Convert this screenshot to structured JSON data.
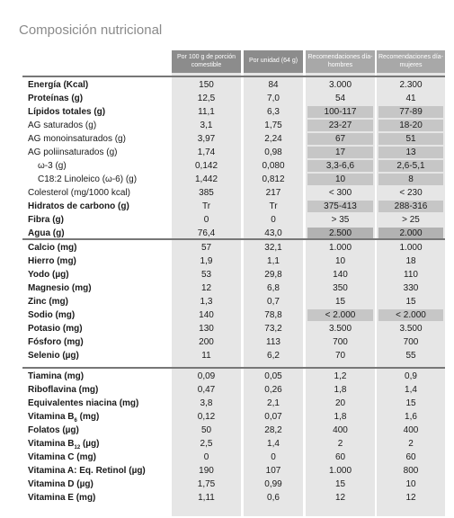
{
  "title": "Composición nutricional",
  "headers": {
    "per100": "Por 100 g de porción comestible",
    "perUnit": "Por unidad (64 g)",
    "recMen": "Recomendaciones día-hombres",
    "recWomen": "Recomendaciones día-mujeres"
  },
  "shade_color": "#c6c6c6",
  "groups": [
    [
      {
        "label": "Energía (Kcal)",
        "bold": true,
        "v": [
          "150",
          "84",
          "3.000",
          "2.300"
        ]
      },
      {
        "label": "Proteínas (g)",
        "bold": true,
        "v": [
          "12,5",
          "7,0",
          "54",
          "41"
        ]
      },
      {
        "label": "Lípidos totales (g)",
        "bold": true,
        "v": [
          "11,1",
          "6,3",
          "100-117",
          "77-89"
        ],
        "shade": [
          2,
          3
        ]
      },
      {
        "label": "AG saturados (g)",
        "v": [
          "3,1",
          "1,75",
          "23-27",
          "18-20"
        ],
        "shade": [
          2,
          3
        ]
      },
      {
        "label": "AG monoinsaturados (g)",
        "v": [
          "3,97",
          "2,24",
          "67",
          "51"
        ],
        "shade": [
          2,
          3
        ]
      },
      {
        "label": "AG poliinsaturados (g)",
        "v": [
          "1,74",
          "0,98",
          "17",
          "13"
        ],
        "shade": [
          2,
          3
        ]
      },
      {
        "label": "ω-3 (g)",
        "indent": true,
        "v": [
          "0,142",
          "0,080",
          "3,3-6,6",
          "2,6-5,1"
        ],
        "shade": [
          2,
          3
        ]
      },
      {
        "label": "C18:2 Linoleico (ω-6) (g)",
        "indent": true,
        "v": [
          "1,442",
          "0,812",
          "10",
          "8"
        ],
        "shade": [
          2,
          3
        ]
      },
      {
        "label": "Colesterol (mg/1000 kcal)",
        "v": [
          "385",
          "217",
          "< 300",
          "< 230"
        ]
      },
      {
        "label": "Hidratos de carbono (g)",
        "bold": true,
        "v": [
          "Tr",
          "Tr",
          "375-413",
          "288-316"
        ],
        "shade": [
          2,
          3
        ]
      },
      {
        "label": "Fibra (g)",
        "bold": true,
        "v": [
          "0",
          "0",
          "> 35",
          "> 25"
        ]
      },
      {
        "label": "Agua (g)",
        "bold": true,
        "v": [
          "76,4",
          "43,0",
          "2.500",
          "2.000"
        ],
        "shade": [
          2,
          3
        ],
        "dark": true
      }
    ],
    [
      {
        "label": "Calcio (mg)",
        "bold": true,
        "v": [
          "57",
          "32,1",
          "1.000",
          "1.000"
        ]
      },
      {
        "label": "Hierro (mg)",
        "bold": true,
        "v": [
          "1,9",
          "1,1",
          "10",
          "18"
        ]
      },
      {
        "label": "Yodo (µg)",
        "bold": true,
        "v": [
          "53",
          "29,8",
          "140",
          "110"
        ]
      },
      {
        "label": "Magnesio (mg)",
        "bold": true,
        "v": [
          "12",
          "6,8",
          "350",
          "330"
        ]
      },
      {
        "label": "Zinc (mg)",
        "bold": true,
        "v": [
          "1,3",
          "0,7",
          "15",
          "15"
        ]
      },
      {
        "label": "Sodio (mg)",
        "bold": true,
        "v": [
          "140",
          "78,8",
          "< 2.000",
          "< 2.000"
        ],
        "shade": [
          2,
          3
        ]
      },
      {
        "label": "Potasio (mg)",
        "bold": true,
        "v": [
          "130",
          "73,2",
          "3.500",
          "3.500"
        ]
      },
      {
        "label": "Fósforo (mg)",
        "bold": true,
        "v": [
          "200",
          "113",
          "700",
          "700"
        ]
      },
      {
        "label": "Selenio (µg)",
        "bold": true,
        "v": [
          "11",
          "6,2",
          "70",
          "55"
        ]
      }
    ],
    [
      {
        "label": "Tiamina (mg)",
        "bold": true,
        "v": [
          "0,09",
          "0,05",
          "1,2",
          "0,9"
        ]
      },
      {
        "label": "Riboflavina (mg)",
        "bold": true,
        "v": [
          "0,47",
          "0,26",
          "1,8",
          "1,4"
        ]
      },
      {
        "label": "Equivalentes niacina (mg)",
        "bold": true,
        "v": [
          "3,8",
          "2,1",
          "20",
          "15"
        ]
      },
      {
        "label": "Vitamina B",
        "sub": "6",
        "tail": " (mg)",
        "bold": true,
        "v": [
          "0,12",
          "0,07",
          "1,8",
          "1,6"
        ]
      },
      {
        "label": "Folatos (µg)",
        "bold": true,
        "v": [
          "50",
          "28,2",
          "400",
          "400"
        ]
      },
      {
        "label": "Vitamina B",
        "sub": "12",
        "tail": " (µg)",
        "bold": true,
        "v": [
          "2,5",
          "1,4",
          "2",
          "2"
        ]
      },
      {
        "label": "Vitamina C (mg)",
        "bold": true,
        "v": [
          "0",
          "0",
          "60",
          "60"
        ]
      },
      {
        "label": "Vitamina A: Eq. Retinol (µg)",
        "bold": true,
        "v": [
          "190",
          "107",
          "1.000",
          "800"
        ]
      },
      {
        "label": "Vitamina D (µg)",
        "bold": true,
        "v": [
          "1,75",
          "0,99",
          "15",
          "10"
        ]
      },
      {
        "label": "Vitamina E (mg)",
        "bold": true,
        "v": [
          "1,11",
          "0,6",
          "12",
          "12"
        ]
      }
    ]
  ]
}
